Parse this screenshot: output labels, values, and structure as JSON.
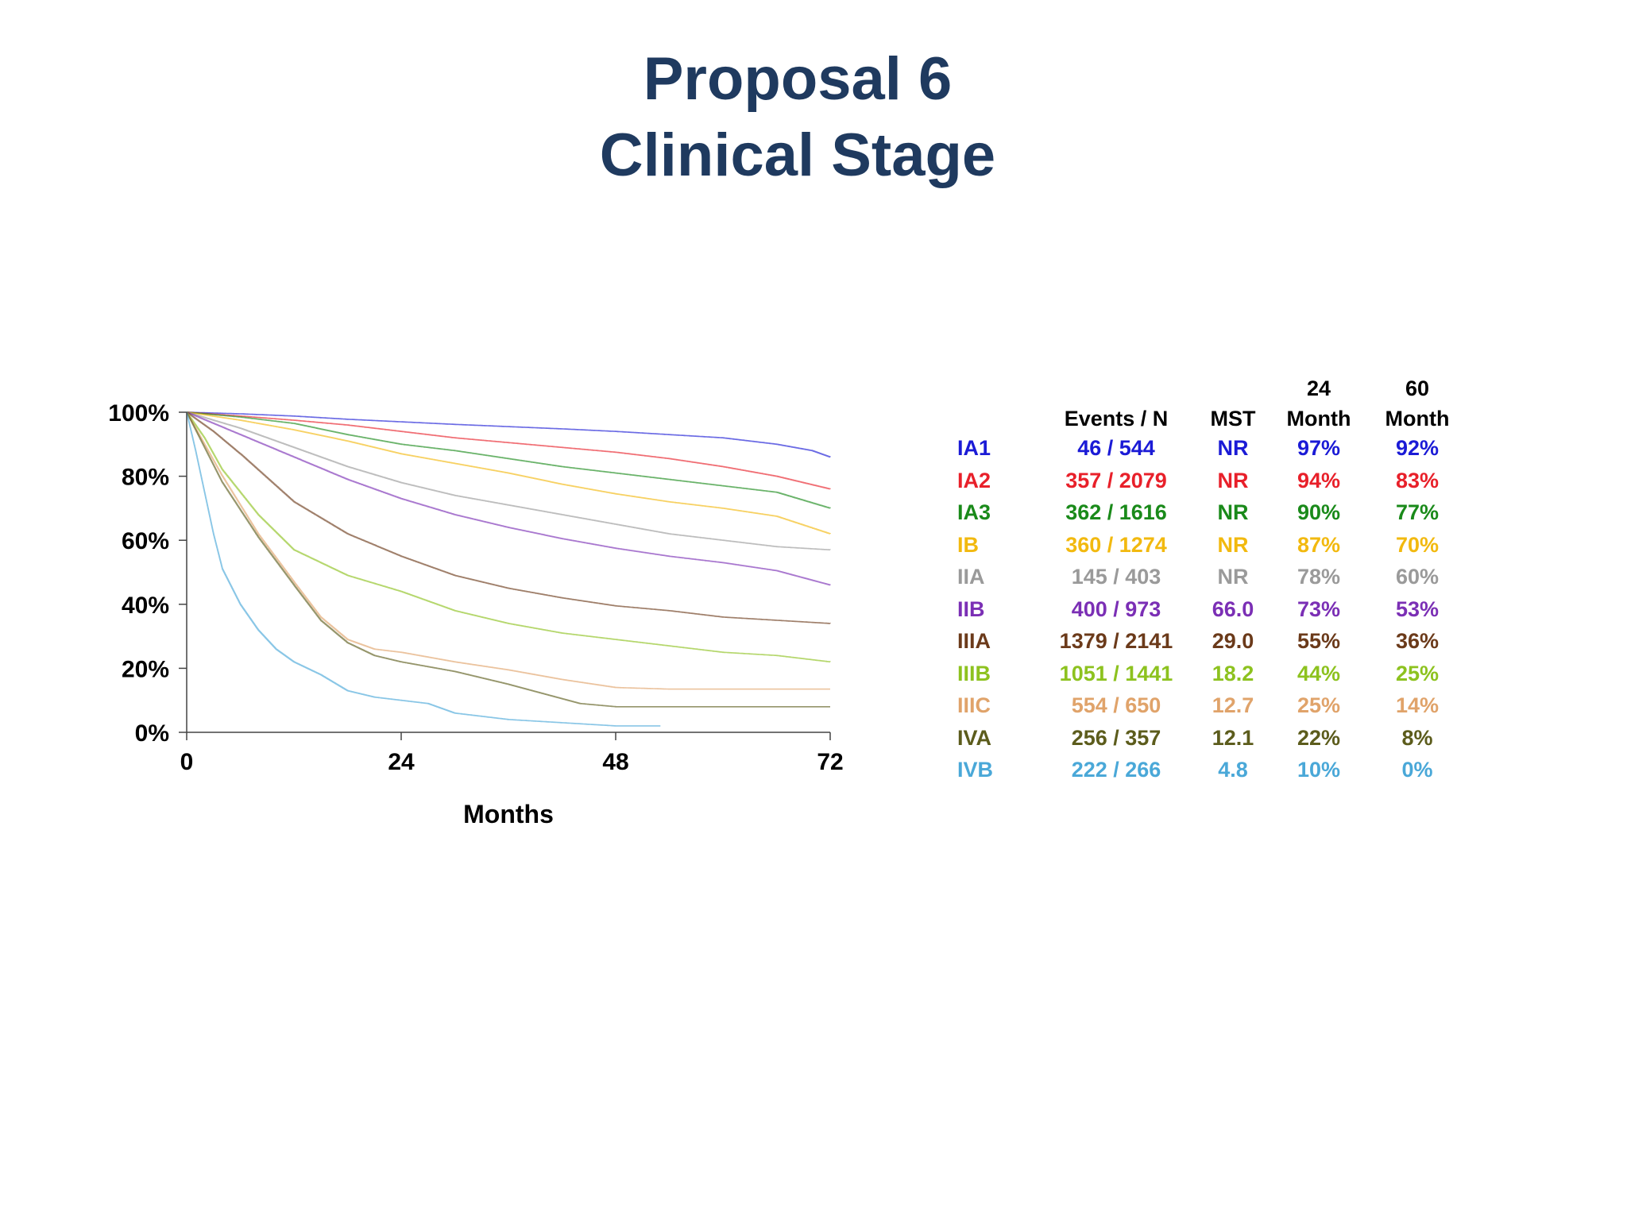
{
  "title_line1": "Proposal 6",
  "title_line2": "Clinical Stage",
  "chart_data": {
    "type": "line",
    "subtype": "kaplan-meier",
    "xlabel": "Months",
    "ylabel": "",
    "xlim": [
      0,
      72
    ],
    "ylim": [
      0,
      100
    ],
    "x_ticks": [
      "0",
      "24",
      "48",
      "72"
    ],
    "y_ticks": [
      "0%",
      "20%",
      "40%",
      "60%",
      "80%",
      "100%"
    ],
    "series": [
      {
        "name": "IA1",
        "color": "#1b1bd6",
        "x": [
          0,
          6,
          12,
          18,
          24,
          30,
          36,
          42,
          48,
          54,
          60,
          66,
          70,
          72
        ],
        "values": [
          100,
          99.5,
          98.8,
          97.8,
          97,
          96.2,
          95.5,
          94.8,
          94,
          93,
          92,
          90,
          88,
          86
        ]
      },
      {
        "name": "IA2",
        "color": "#e8202a",
        "x": [
          0,
          6,
          12,
          18,
          24,
          30,
          36,
          42,
          48,
          54,
          60,
          66,
          72
        ],
        "values": [
          100,
          98.8,
          97.5,
          96,
          94,
          92,
          90.5,
          89,
          87.5,
          85.5,
          83,
          80,
          76
        ]
      },
      {
        "name": "IA3",
        "color": "#1a8a1a",
        "x": [
          0,
          6,
          12,
          18,
          24,
          30,
          36,
          42,
          48,
          54,
          60,
          66,
          72
        ],
        "values": [
          100,
          98.5,
          96.5,
          93,
          90,
          88,
          85.5,
          83,
          81,
          79,
          77,
          75,
          70
        ]
      },
      {
        "name": "IB",
        "color": "#f2b90f",
        "x": [
          0,
          6,
          12,
          18,
          24,
          30,
          36,
          42,
          48,
          54,
          60,
          66,
          72
        ],
        "values": [
          100,
          97.5,
          94.5,
          91,
          87,
          84,
          81,
          77.5,
          74.5,
          72,
          70,
          67.5,
          62
        ]
      },
      {
        "name": "IIA",
        "color": "#9a9a9a",
        "x": [
          0,
          6,
          12,
          18,
          24,
          30,
          36,
          42,
          48,
          54,
          60,
          66,
          72
        ],
        "values": [
          100,
          95,
          89,
          83,
          78,
          74,
          71,
          68,
          65,
          62,
          60,
          58,
          57
        ]
      },
      {
        "name": "IIB",
        "color": "#7b2fb5",
        "x": [
          0,
          6,
          12,
          18,
          24,
          30,
          36,
          42,
          48,
          54,
          60,
          66,
          72
        ],
        "values": [
          100,
          93,
          86,
          79,
          73,
          68,
          64,
          60.5,
          57.5,
          55,
          53,
          50.5,
          46
        ]
      },
      {
        "name": "IIIA",
        "color": "#6b3a1a",
        "x": [
          0,
          3,
          6,
          12,
          18,
          24,
          30,
          36,
          42,
          48,
          54,
          60,
          66,
          72
        ],
        "values": [
          100,
          94,
          87,
          72,
          62,
          55,
          49,
          45,
          42,
          39.5,
          38,
          36,
          35,
          34
        ]
      },
      {
        "name": "IIIB",
        "color": "#8dc21f",
        "x": [
          0,
          2,
          4,
          8,
          12,
          18,
          24,
          30,
          36,
          42,
          48,
          54,
          60,
          66,
          72
        ],
        "values": [
          100,
          92,
          82,
          68,
          57,
          49,
          44,
          38,
          34,
          31,
          29,
          27,
          25,
          24,
          22
        ]
      },
      {
        "name": "IIIC",
        "color": "#e0a36a",
        "x": [
          0,
          2,
          4,
          8,
          12,
          15,
          18,
          21,
          24,
          30,
          36,
          42,
          48,
          54,
          60,
          66,
          72
        ],
        "values": [
          100,
          90,
          80,
          62,
          47,
          36,
          29,
          26,
          25,
          22,
          19.5,
          16.5,
          14,
          13.5,
          13.5,
          13.5,
          13.5
        ]
      },
      {
        "name": "IVA",
        "color": "#5c5c1c",
        "x": [
          0,
          2,
          4,
          8,
          12,
          15,
          18,
          21,
          24,
          30,
          36,
          40,
          44,
          48,
          54,
          60,
          66,
          72
        ],
        "values": [
          100,
          89,
          78,
          61,
          46,
          35,
          28,
          24,
          22,
          19,
          15,
          12,
          9,
          8,
          8,
          8,
          8,
          8
        ]
      },
      {
        "name": "IVB",
        "color": "#4aa8d8",
        "x": [
          0,
          1,
          2,
          3,
          4,
          6,
          8,
          10,
          12,
          15,
          18,
          21,
          24,
          27,
          30,
          36,
          42,
          48,
          53
        ],
        "values": [
          100,
          88,
          75,
          62,
          51,
          40,
          32,
          26,
          22,
          18,
          13,
          11,
          10,
          9,
          6,
          4,
          3,
          2,
          2
        ]
      }
    ]
  },
  "table": {
    "header": {
      "events_n": "Events / N",
      "mst": "MST",
      "m24_top": "24",
      "m24_bottom": "Month",
      "m60_top": "60",
      "m60_bottom": "Month"
    },
    "rows": [
      {
        "stage": "IA1",
        "events_n": "46 / 544",
        "mst": "NR",
        "m24": "97%",
        "m60": "92%",
        "color": "#1b1bd6"
      },
      {
        "stage": "IA2",
        "events_n": "357 / 2079",
        "mst": "NR",
        "m24": "94%",
        "m60": "83%",
        "color": "#e8202a"
      },
      {
        "stage": "IA3",
        "events_n": "362 / 1616",
        "mst": "NR",
        "m24": "90%",
        "m60": "77%",
        "color": "#1a8a1a"
      },
      {
        "stage": "IB",
        "events_n": "360 / 1274",
        "mst": "NR",
        "m24": "87%",
        "m60": "70%",
        "color": "#f2b90f"
      },
      {
        "stage": "IIA",
        "events_n": "145 / 403",
        "mst": "NR",
        "m24": "78%",
        "m60": "60%",
        "color": "#9a9a9a"
      },
      {
        "stage": "IIB",
        "events_n": "400 / 973",
        "mst": "66.0",
        "m24": "73%",
        "m60": "53%",
        "color": "#7b2fb5"
      },
      {
        "stage": "IIIA",
        "events_n": "1379 / 2141",
        "mst": "29.0",
        "m24": "55%",
        "m60": "36%",
        "color": "#6b3a1a"
      },
      {
        "stage": "IIIB",
        "events_n": "1051 / 1441",
        "mst": "18.2",
        "m24": "44%",
        "m60": "25%",
        "color": "#8dc21f"
      },
      {
        "stage": "IIIC",
        "events_n": "554 / 650",
        "mst": "12.7",
        "m24": "25%",
        "m60": "14%",
        "color": "#e0a36a"
      },
      {
        "stage": "IVA",
        "events_n": "256 / 357",
        "mst": "12.1",
        "m24": "22%",
        "m60": "8%",
        "color": "#5c5c1c"
      },
      {
        "stage": "IVB",
        "events_n": "222 / 266",
        "mst": "4.8",
        "m24": "10%",
        "m60": "0%",
        "color": "#4aa8d8"
      }
    ]
  }
}
